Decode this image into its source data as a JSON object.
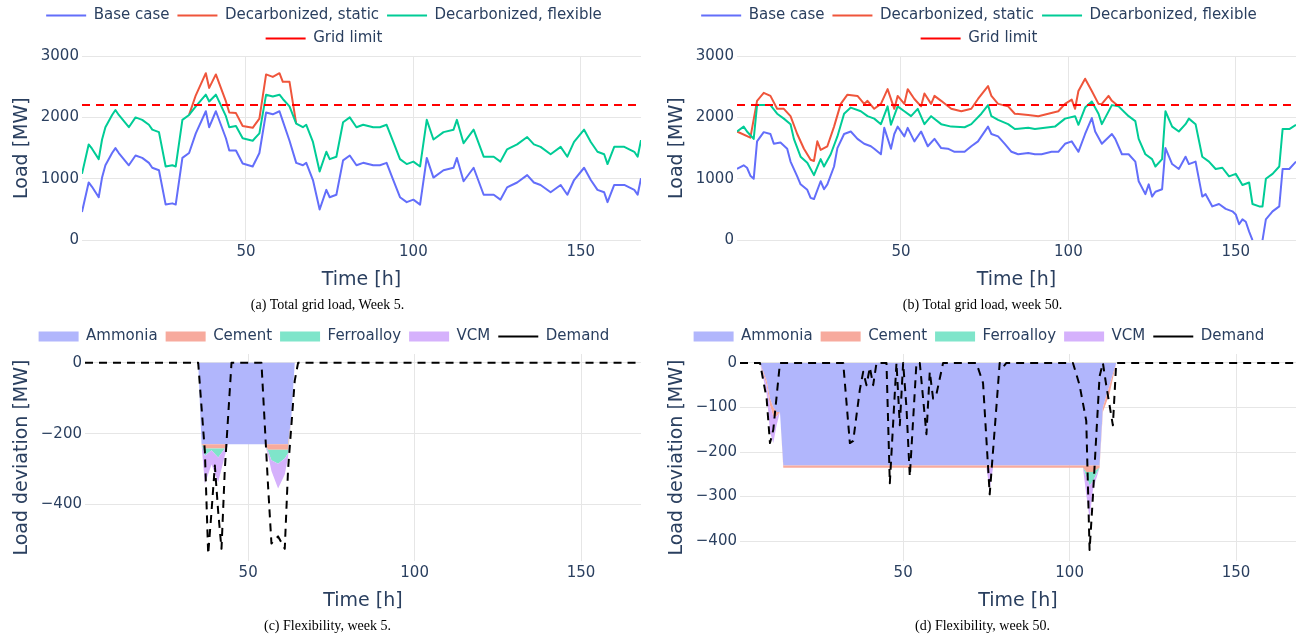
{
  "chart_data": [
    {
      "type": "line",
      "xlabel": "Time [h]",
      "ylabel": "Load [MW]",
      "xlim": [
        1,
        168
      ],
      "xticks": [
        50,
        100,
        150
      ],
      "ylim": [
        0,
        3000
      ],
      "yticks": [
        0,
        1000,
        2000,
        3000
      ],
      "grid": true,
      "legend": "top",
      "annotations": [
        "(a) Total grid load, Week 5."
      ],
      "series": [
        {
          "name": "Base case",
          "color": "#636efa",
          "x": [
            1,
            3,
            4,
            6,
            7,
            8,
            10,
            11,
            12,
            15,
            17,
            19,
            21,
            22,
            24,
            26,
            28,
            29,
            31,
            33,
            35,
            38,
            39,
            41,
            44,
            45,
            47,
            49,
            52,
            54,
            56,
            58,
            60,
            61,
            63,
            65,
            67,
            68,
            70,
            72,
            74,
            75,
            77,
            79,
            81,
            83,
            85,
            88,
            90,
            92,
            94,
            96,
            98,
            100,
            102,
            104,
            106,
            109,
            112,
            113,
            115,
            118,
            121,
            124,
            126,
            128,
            131,
            134,
            136,
            138,
            141,
            144,
            146,
            148,
            151,
            153,
            155,
            157,
            158,
            160,
            163,
            166,
            167,
            168
          ],
          "values": [
            460,
            940,
            870,
            700,
            1020,
            1220,
            1420,
            1500,
            1420,
            1220,
            1380,
            1340,
            1260,
            1180,
            1140,
            580,
            600,
            580,
            1340,
            1420,
            1740,
            2100,
            1840,
            2100,
            1660,
            1460,
            1460,
            1250,
            1200,
            1420,
            2080,
            2050,
            2100,
            1940,
            1620,
            1260,
            1220,
            1260,
            980,
            500,
            820,
            700,
            740,
            1300,
            1380,
            1220,
            1260,
            1220,
            1220,
            1260,
            980,
            700,
            620,
            660,
            580,
            1340,
            1020,
            1140,
            1180,
            1340,
            960,
            1180,
            740,
            740,
            660,
            860,
            940,
            1060,
            940,
            900,
            780,
            900,
            740,
            980,
            1180,
            980,
            820,
            780,
            620,
            900,
            900,
            820,
            740,
            1010
          ]
        },
        {
          "name": "Decarbonized, static",
          "color": "#ef553b",
          "x": [
            33,
            35,
            38,
            39,
            41,
            44,
            45,
            47,
            49,
            52,
            54,
            56,
            58,
            60,
            61,
            63,
            65
          ],
          "values": [
            2040,
            2360,
            2720,
            2480,
            2700,
            2260,
            2080,
            2070,
            1860,
            1830,
            1980,
            2700,
            2660,
            2720,
            2580,
            2580,
            1900
          ]
        },
        {
          "name": "Decarbonized, flexible",
          "color": "#00cc96",
          "x": [
            1,
            3,
            4,
            6,
            7,
            8,
            10,
            11,
            12,
            15,
            17,
            19,
            21,
            22,
            24,
            26,
            28,
            29,
            31,
            33,
            35,
            38,
            39,
            41,
            44,
            45,
            47,
            49,
            52,
            54,
            56,
            58,
            60,
            61,
            63,
            65,
            67,
            68,
            70,
            72,
            74,
            75,
            77,
            79,
            81,
            83,
            85,
            88,
            90,
            92,
            94,
            96,
            98,
            100,
            102,
            104,
            106,
            109,
            112,
            113,
            115,
            118,
            121,
            124,
            126,
            128,
            131,
            134,
            136,
            138,
            141,
            144,
            146,
            148,
            151,
            153,
            155,
            157,
            158,
            160,
            163,
            166,
            167,
            168
          ],
          "values": [
            1080,
            1560,
            1490,
            1320,
            1640,
            1840,
            2040,
            2120,
            2040,
            1840,
            2000,
            1960,
            1880,
            1800,
            1760,
            1200,
            1220,
            1200,
            1960,
            2040,
            2180,
            2370,
            2260,
            2370,
            2020,
            1840,
            1860,
            1660,
            1620,
            1740,
            2370,
            2340,
            2370,
            2300,
            2180,
            1900,
            1840,
            1880,
            1600,
            1120,
            1440,
            1320,
            1360,
            1920,
            2000,
            1840,
            1880,
            1840,
            1840,
            1880,
            1600,
            1320,
            1240,
            1280,
            1200,
            1960,
            1640,
            1760,
            1800,
            1960,
            1580,
            1800,
            1360,
            1360,
            1280,
            1480,
            1560,
            1680,
            1560,
            1520,
            1400,
            1520,
            1360,
            1600,
            1800,
            1600,
            1440,
            1400,
            1240,
            1520,
            1520,
            1440,
            1360,
            1630
          ]
        }
      ],
      "ref_lines": [
        {
          "axis": "y",
          "value": 2200,
          "label": "Grid limit",
          "color": "#ff0000",
          "line_style": "dashed"
        }
      ]
    },
    {
      "type": "line",
      "xlabel": "Time [h]",
      "ylabel": "Load [MW]",
      "xlim": [
        1,
        168
      ],
      "xticks": [
        50,
        100,
        150
      ],
      "ylim": [
        0,
        3000
      ],
      "yticks": [
        0,
        1000,
        2000,
        3000
      ],
      "grid": true,
      "legend": "top",
      "annotations": [
        "(b) Total grid load, week 50."
      ],
      "series": [
        {
          "name": "Base case",
          "color": "#636efa",
          "x": [
            1,
            3,
            4,
            5,
            6,
            7,
            9,
            11,
            12,
            14,
            16,
            17,
            19,
            20,
            22,
            23,
            24,
            26,
            27,
            28,
            30,
            31,
            33,
            35,
            37,
            39,
            41,
            42,
            44,
            45,
            47,
            48,
            49,
            51,
            52,
            54,
            56,
            58,
            60,
            62,
            64,
            66,
            69,
            71,
            73,
            76,
            77,
            79,
            81,
            83,
            85,
            88,
            90,
            92,
            95,
            97,
            99,
            101,
            103,
            105,
            107,
            108,
            110,
            113,
            114,
            116,
            118,
            120,
            121,
            123,
            124,
            125,
            126,
            128,
            129,
            131,
            132,
            133,
            135,
            136,
            138,
            140,
            141,
            143,
            145,
            147,
            149,
            150,
            151,
            152,
            153,
            154,
            155,
            156,
            158,
            159,
            161,
            163,
            164,
            166,
            168
          ],
          "values": [
            1160,
            1220,
            1180,
            1050,
            1000,
            1610,
            1760,
            1730,
            1570,
            1590,
            1490,
            1280,
            1040,
            910,
            820,
            690,
            670,
            960,
            830,
            910,
            1200,
            1500,
            1730,
            1770,
            1650,
            1570,
            1530,
            1490,
            1400,
            1830,
            1490,
            1730,
            1850,
            1690,
            1830,
            1610,
            1770,
            1530,
            1650,
            1500,
            1490,
            1440,
            1440,
            1530,
            1610,
            1850,
            1730,
            1690,
            1570,
            1440,
            1400,
            1420,
            1400,
            1400,
            1440,
            1440,
            1570,
            1610,
            1440,
            1730,
            1990,
            1770,
            1570,
            1730,
            1650,
            1400,
            1400,
            1280,
            960,
            750,
            910,
            710,
            790,
            830,
            1500,
            1240,
            1200,
            1160,
            1360,
            1240,
            1280,
            710,
            750,
            550,
            590,
            510,
            470,
            420,
            260,
            340,
            300,
            140,
            0,
            null,
            0,
            340,
            470,
            550,
            1160,
            1160,
            1280
          ]
        },
        {
          "name": "Decarbonized, static",
          "color": "#ef553b",
          "x": [
            1,
            5,
            7,
            9,
            11,
            13,
            15,
            17,
            19,
            21,
            23,
            24,
            25,
            26,
            28,
            30,
            32,
            34,
            37,
            39,
            40,
            42,
            44,
            46,
            48,
            49,
            51,
            52,
            54,
            56,
            57,
            59,
            60,
            62,
            65,
            68,
            71,
            73,
            76,
            77,
            79,
            82,
            84,
            88,
            91,
            94,
            97,
            99,
            101,
            102,
            103,
            105,
            107,
            109,
            110,
            112,
            113,
            115
          ],
          "values": [
            1770,
            1670,
            2270,
            2400,
            2350,
            2140,
            2140,
            2020,
            1730,
            1490,
            1310,
            1290,
            1610,
            1470,
            1530,
            1850,
            2220,
            2370,
            2350,
            2220,
            2270,
            2140,
            2220,
            2460,
            2140,
            2350,
            2220,
            2460,
            2300,
            2180,
            2390,
            2220,
            2350,
            2270,
            2140,
            2100,
            2140,
            2300,
            2510,
            2350,
            2220,
            2180,
            2060,
            2040,
            2020,
            2060,
            2100,
            2220,
            2290,
            2140,
            2430,
            2630,
            2430,
            2220,
            2220,
            2350,
            2270,
            2180
          ]
        },
        {
          "name": "Decarbonized, flexible",
          "color": "#00cc96",
          "x": [
            1,
            3,
            4,
            6,
            7,
            9,
            11,
            13,
            15,
            17,
            18,
            20,
            22,
            24,
            26,
            27,
            29,
            31,
            33,
            35,
            38,
            40,
            42,
            44,
            46,
            47,
            49,
            51,
            53,
            55,
            57,
            59,
            62,
            65,
            69,
            71,
            74,
            76,
            77,
            79,
            82,
            84,
            88,
            90,
            93,
            96,
            99,
            102,
            103,
            105,
            107,
            109,
            110,
            113,
            115,
            118,
            120,
            121,
            123,
            125,
            126,
            128,
            129,
            131,
            133,
            135,
            136,
            138,
            140,
            142,
            144,
            146,
            148,
            150,
            152,
            154,
            155,
            157,
            158,
            159,
            161,
            163,
            164,
            166,
            168
          ],
          "values": [
            1770,
            1850,
            1770,
            1650,
            2200,
            2200,
            2200,
            2060,
            1980,
            1890,
            1650,
            1360,
            1260,
            1060,
            1320,
            1200,
            1400,
            1690,
            2060,
            2160,
            2100,
            2020,
            1980,
            1890,
            2180,
            1880,
            2180,
            2100,
            2020,
            2140,
            1890,
            2020,
            1890,
            1850,
            1840,
            1890,
            2060,
            2200,
            2020,
            1960,
            1890,
            1810,
            1830,
            1810,
            1830,
            1850,
            1980,
            2020,
            1880,
            2160,
            2260,
            2060,
            1890,
            2200,
            2180,
            2020,
            1940,
            1650,
            1400,
            1320,
            1200,
            1320,
            2100,
            1850,
            1770,
            1890,
            1980,
            1890,
            1360,
            1280,
            1160,
            1180,
            1040,
            1080,
            900,
            940,
            590,
            550,
            550,
            1000,
            1080,
            1200,
            1810,
            1810,
            1880
          ]
        }
      ],
      "ref_lines": [
        {
          "axis": "y",
          "value": 2200,
          "label": "Grid limit",
          "color": "#ff0000",
          "line_style": "dashed"
        }
      ]
    },
    {
      "type": "area",
      "stacked": true,
      "xlabel": "Time [h]",
      "ylabel": "Load deviation [MW]",
      "xlim": [
        1,
        168
      ],
      "xticks": [
        50,
        100,
        150
      ],
      "ylim": [
        -560,
        25
      ],
      "yticks": [
        0,
        {
          "value": -200,
          "label": "−200"
        },
        {
          "value": -400,
          "label": "−400"
        }
      ],
      "grid": true,
      "legend": "top",
      "annotations": [
        "(c) Flexibility, week 5."
      ],
      "series": [
        {
          "name": "Ammonia",
          "color": "#b1b6fc",
          "x": [
            1,
            35,
            36,
            37,
            39,
            41,
            43,
            44,
            50,
            55,
            56,
            57,
            59,
            61,
            62,
            63,
            64,
            168
          ],
          "values": [
            0,
            0,
            -230,
            -230,
            -230,
            -230,
            -230,
            -230,
            -230,
            -230,
            -230,
            -230,
            -230,
            -230,
            -230,
            -150,
            0,
            0
          ]
        },
        {
          "name": "Cement",
          "color": "#f7aa9d",
          "x": [
            1,
            35,
            36,
            37,
            39,
            41,
            43,
            44,
            50,
            55,
            56,
            57,
            59,
            61,
            62,
            63,
            64,
            168
          ],
          "values": [
            0,
            0,
            0,
            -12,
            -12,
            -12,
            -12,
            0,
            0,
            0,
            -15,
            -15,
            -15,
            -15,
            -15,
            0,
            0,
            0
          ]
        },
        {
          "name": "Ferroalloy",
          "color": "#7fe5ca",
          "x": [
            1,
            35,
            36,
            37,
            39,
            41,
            43,
            44,
            50,
            55,
            56,
            57,
            59,
            61,
            62,
            63,
            64,
            168
          ],
          "values": [
            0,
            0,
            0,
            -20,
            -5,
            -25,
            0,
            0,
            0,
            0,
            -5,
            -30,
            -40,
            -25,
            -10,
            0,
            0,
            0
          ]
        },
        {
          "name": "VCM",
          "color": "#d5b1fc",
          "x": [
            1,
            35,
            36,
            37,
            39,
            41,
            43,
            44,
            50,
            55,
            56,
            57,
            59,
            61,
            62,
            63,
            64,
            168
          ],
          "values": [
            0,
            0,
            0,
            -80,
            -40,
            -70,
            -20,
            0,
            0,
            0,
            -10,
            -30,
            -70,
            -45,
            -10,
            0,
            0,
            0
          ]
        },
        {
          "name": "Demand",
          "type": "line",
          "color": "#000000",
          "line_style": "dashed",
          "x": [
            1,
            35,
            37,
            38,
            39,
            40,
            41,
            42,
            43,
            45,
            54,
            56,
            57,
            59,
            61,
            62,
            64,
            65,
            168
          ],
          "values": [
            0,
            0,
            -250,
            -540,
            -420,
            -290,
            -420,
            -525,
            -300,
            0,
            0,
            -350,
            -510,
            -490,
            -525,
            -300,
            -50,
            0,
            0
          ]
        }
      ]
    },
    {
      "type": "area",
      "stacked": true,
      "xlabel": "Time [h]",
      "ylabel": "Load deviation [MW]",
      "xlim": [
        1,
        168
      ],
      "xticks": [
        50,
        100,
        150
      ],
      "ylim": [
        -445,
        20
      ],
      "yticks": [
        0,
        {
          "value": -100,
          "label": "−100"
        },
        {
          "value": -200,
          "label": "−200"
        },
        {
          "value": -300,
          "label": "−300"
        },
        {
          "value": -400,
          "label": "−400"
        }
      ],
      "grid": true,
      "legend": "top",
      "annotations": [
        "(d) Flexibility, week 50."
      ],
      "series": [
        {
          "name": "Ammonia",
          "color": "#b1b6fc",
          "x": [
            1,
            7,
            9,
            10,
            11,
            12,
            13,
            14,
            75,
            76,
            77,
            104,
            105,
            106,
            107,
            109,
            110,
            112,
            114,
            168
          ],
          "values": [
            0,
            0,
            -40,
            -80,
            -100,
            -110,
            -110,
            -230,
            -230,
            -230,
            -230,
            -230,
            -230,
            -230,
            -230,
            -230,
            -100,
            -50,
            0,
            0
          ]
        },
        {
          "name": "Cement",
          "color": "#f7aa9d",
          "x": [
            1,
            7,
            9,
            10,
            11,
            12,
            13,
            14,
            75,
            76,
            77,
            104,
            105,
            106,
            107,
            109,
            110,
            112,
            114,
            168
          ],
          "values": [
            0,
            0,
            -10,
            -15,
            -20,
            -10,
            0,
            -5,
            -5,
            -5,
            -5,
            -5,
            -15,
            -15,
            -15,
            -5,
            -10,
            -20,
            0,
            0
          ]
        },
        {
          "name": "Ferroalloy",
          "color": "#7fe5ca",
          "x": [
            1,
            7,
            9,
            10,
            11,
            12,
            13,
            14,
            75,
            76,
            77,
            104,
            105,
            106,
            107,
            109,
            110,
            112,
            114,
            168
          ],
          "values": [
            0,
            0,
            0,
            0,
            0,
            0,
            0,
            0,
            0,
            0,
            0,
            0,
            -10,
            -30,
            -20,
            0,
            0,
            0,
            0,
            0
          ]
        },
        {
          "name": "VCM",
          "color": "#d5b1fc",
          "x": [
            1,
            7,
            9,
            10,
            11,
            12,
            13,
            14,
            75,
            76,
            77,
            104,
            105,
            106,
            107,
            109,
            110,
            112,
            114,
            168
          ],
          "values": [
            0,
            0,
            -20,
            -60,
            -60,
            -20,
            0,
            0,
            0,
            -50,
            0,
            0,
            -40,
            -75,
            -20,
            0,
            0,
            0,
            0,
            0
          ]
        },
        {
          "name": "Demand",
          "type": "line",
          "color": "#000000",
          "line_style": "dashed",
          "x": [
            1,
            7,
            9,
            10,
            11,
            13,
            32,
            34,
            35,
            37,
            38,
            39,
            40,
            41,
            42,
            45,
            46,
            48,
            49,
            50,
            51,
            52,
            54,
            55,
            57,
            58,
            59,
            60,
            62,
            72,
            74,
            76,
            78,
            79,
            80,
            81,
            101,
            103,
            105,
            106,
            107,
            109,
            110,
            111,
            113,
            114,
            168
          ],
          "values": [
            0,
            0,
            -80,
            -180,
            -150,
            0,
            0,
            -180,
            -175,
            -60,
            -20,
            -50,
            -10,
            -50,
            0,
            0,
            -270,
            0,
            -140,
            0,
            -100,
            -255,
            0,
            0,
            -160,
            -20,
            -80,
            -70,
            0,
            0,
            -45,
            -295,
            -100,
            0,
            -10,
            0,
            0,
            -50,
            -130,
            -420,
            -300,
            -30,
            0,
            -50,
            -140,
            0,
            0
          ]
        }
      ]
    }
  ]
}
